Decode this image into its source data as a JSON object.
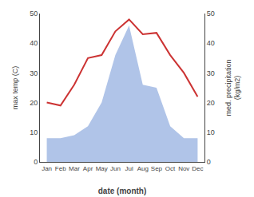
{
  "chart_data": {
    "type": "line",
    "categories": [
      "Jan",
      "Feb",
      "Mar",
      "Apr",
      "May",
      "Jun",
      "Jul",
      "Aug",
      "Sep",
      "Oct",
      "Nov",
      "Dec"
    ],
    "series": [
      {
        "type": "area",
        "color": "#b0c4e8",
        "axis": "y2",
        "values": [
          8.0,
          8.0,
          9.0,
          12.0,
          20.0,
          36.0,
          46.0,
          26.0,
          25.0,
          12.0,
          8.0,
          8.0
        ]
      },
      {
        "type": "line",
        "color": "#cc3333",
        "values": [
          20.0,
          19.0,
          26.0,
          35.0,
          36.0,
          44.0,
          48.0,
          43.0,
          43.5,
          36.0,
          30.0,
          22.0
        ]
      }
    ],
    "xlabel": "date (month)",
    "ylabel": "max temp (C)",
    "y2label": "med. precipitation\n(kg/m2)",
    "ylim": [
      0,
      50
    ],
    "yticks": [
      0,
      10,
      20,
      30,
      40,
      50
    ],
    "y2lim": [
      0,
      50
    ],
    "y2ticks": [
      0,
      10,
      20,
      30,
      40,
      50
    ],
    "grid": false
  }
}
